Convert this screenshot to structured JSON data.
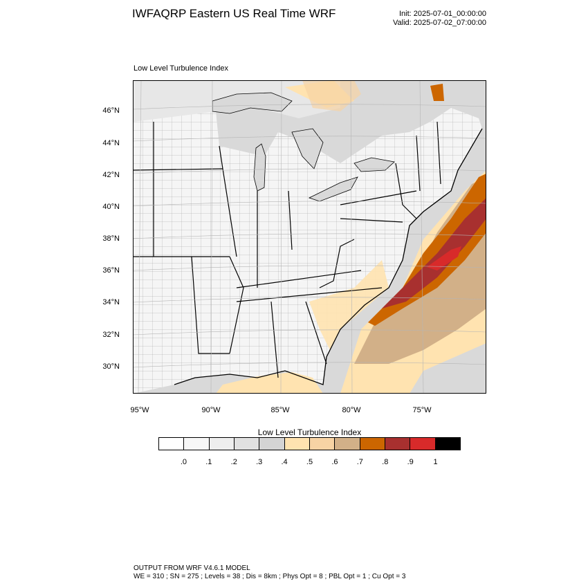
{
  "header": {
    "title": "IWFAQRP Eastern US Real Time WRF",
    "init": "Init: 2025-07-01_00:00:00",
    "valid": "Valid: 2025-07-02_07:00:00"
  },
  "plot": {
    "label": "Low Level Turbulence Index",
    "lat_labels": [
      "46°N",
      "44°N",
      "42°N",
      "40°N",
      "38°N",
      "36°N",
      "34°N",
      "32°N",
      "30°N"
    ],
    "lon_labels": [
      "95°W",
      "90°W",
      "85°W",
      "80°W",
      "75°W"
    ]
  },
  "colorbar": {
    "title": "Low Level Turbulence Index",
    "ticks": [
      ".0",
      ".1",
      ".2",
      ".3",
      ".4",
      ".5",
      ".6",
      ".7",
      ".8",
      ".9",
      "1"
    ],
    "colors": [
      "#ffffff",
      "#f7f7f7",
      "#eeeeee",
      "#e1e1e1",
      "#d4d4d4",
      "#ffe3b0",
      "#f7d3a4",
      "#d2b088",
      "#cc6600",
      "#a8302f",
      "#d82a2a",
      "#000000"
    ]
  },
  "footer": {
    "line1": "OUTPUT FROM WRF V4.6.1 MODEL",
    "line2": "WE = 310 ; SN = 275 ; Levels = 38 ; Dis = 8km ; Phys Opt = 8 ; PBL Opt = 1 ; Cu Opt = 3"
  }
}
